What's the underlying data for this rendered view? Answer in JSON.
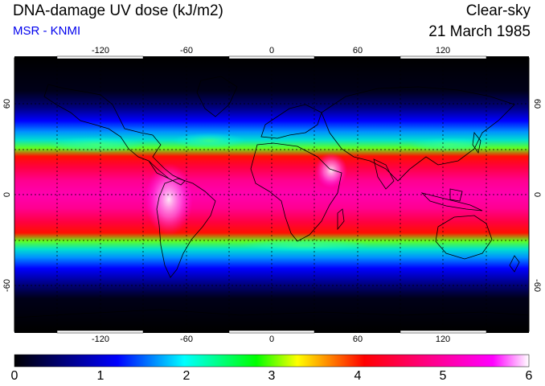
{
  "header": {
    "title": "DNA-damage UV dose (kJ/m2)",
    "source": "MSR - KNMI",
    "condition": "Clear-sky",
    "date": "21 March 1985"
  },
  "map": {
    "lon_ticks": [
      "-120",
      "-60",
      "0",
      "60",
      "120"
    ],
    "lat_ticks_left": [
      "60",
      "0",
      "-60"
    ],
    "lat_ticks_right": [
      "60",
      "0",
      "-60"
    ],
    "lon_range": [
      -180,
      180
    ],
    "lat_range": [
      -90,
      90
    ],
    "gridlines": "dotted every 30 degrees"
  },
  "colorbar": {
    "labels": [
      "0",
      "1",
      "2",
      "3",
      "4",
      "5",
      "6"
    ],
    "range": [
      0,
      6
    ],
    "colors": [
      "#000000",
      "#000080",
      "#0000ff",
      "#00ffff",
      "#00ff00",
      "#ffff00",
      "#ff0000",
      "#ff0080",
      "#ff00ff",
      "#ffffff"
    ]
  }
}
